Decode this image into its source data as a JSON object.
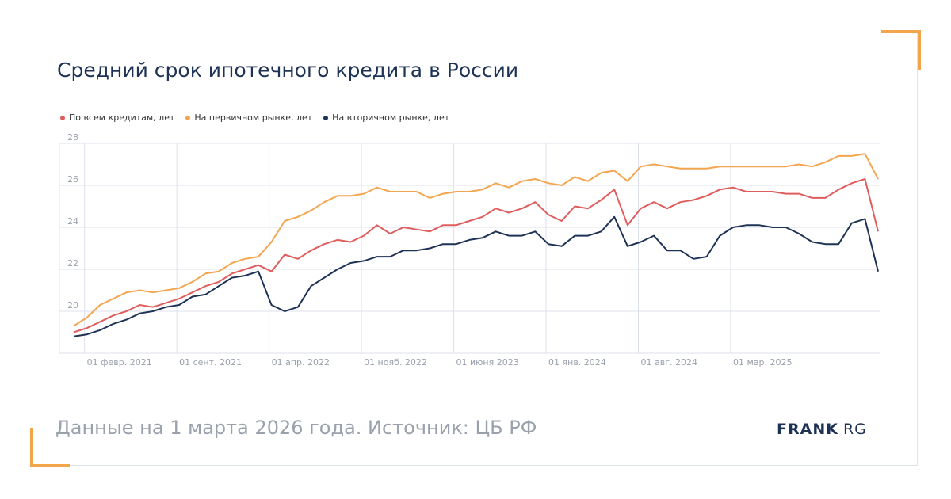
{
  "colors": {
    "accent": "#f2a54a",
    "series_all": "#e05d5d",
    "series_primary": "#f4a54f",
    "series_secondary": "#1e3256",
    "title": "#1e3256",
    "grid": "#dde1ee"
  },
  "header": {
    "title": "Средний срок ипотечного кредита в России"
  },
  "footer": {
    "source": "Данные на 1 марта 2026 года. Источник: ЦБ РФ",
    "logo_bold": "FRANK",
    "logo_light": "RG"
  },
  "chart_data": {
    "type": "line",
    "title": "Средний срок ипотечного кредита в России",
    "xlabel": "",
    "ylabel": "",
    "ylim": [
      18,
      28
    ],
    "yticks": [
      20,
      22,
      24,
      26,
      28
    ],
    "grid": true,
    "legend_position": "top-left",
    "x_start": "2021-01",
    "x_end": "2026-02",
    "x_tick_labels": [
      "01 февр. 2021",
      "01 сент. 2021",
      "01 апр. 2022",
      "01 нояб. 2022",
      "01 июня 2023",
      "01 янв. 2024",
      "01 авг. 2024",
      "01 мар. 2025"
    ],
    "series": [
      {
        "name": "По всем кредитам, лет",
        "values": [
          19.0,
          19.2,
          19.5,
          19.8,
          20.0,
          20.3,
          20.2,
          20.4,
          20.6,
          20.9,
          21.2,
          21.4,
          21.8,
          22.0,
          22.2,
          21.9,
          22.7,
          22.5,
          22.9,
          23.2,
          23.4,
          23.3,
          23.6,
          24.1,
          23.7,
          24.0,
          23.9,
          23.8,
          24.1,
          24.1,
          24.3,
          24.5,
          24.9,
          24.7,
          24.9,
          25.2,
          24.6,
          24.3,
          25.0,
          24.9,
          25.3,
          25.8,
          24.1,
          24.9,
          25.2,
          24.9,
          25.2,
          25.3,
          25.5,
          25.8,
          25.9,
          25.7,
          25.7,
          25.7,
          25.6,
          25.6,
          25.4,
          25.4,
          25.8,
          26.1,
          26.3,
          23.8
        ]
      },
      {
        "name": "На первичном рынке, лет",
        "values": [
          19.3,
          19.7,
          20.3,
          20.6,
          20.9,
          21.0,
          20.9,
          21.0,
          21.1,
          21.4,
          21.8,
          21.9,
          22.3,
          22.5,
          22.6,
          23.3,
          24.3,
          24.5,
          24.8,
          25.2,
          25.5,
          25.5,
          25.6,
          25.9,
          25.7,
          25.7,
          25.7,
          25.4,
          25.6,
          25.7,
          25.7,
          25.8,
          26.1,
          25.9,
          26.2,
          26.3,
          26.1,
          26.0,
          26.4,
          26.2,
          26.6,
          26.7,
          26.2,
          26.9,
          27.0,
          26.9,
          26.8,
          26.8,
          26.8,
          26.9,
          26.9,
          26.9,
          26.9,
          26.9,
          26.9,
          27.0,
          26.9,
          27.1,
          27.4,
          27.4,
          27.5,
          26.3
        ]
      },
      {
        "name": "На вторичном рынке, лет",
        "values": [
          18.8,
          18.9,
          19.1,
          19.4,
          19.6,
          19.9,
          20.0,
          20.2,
          20.3,
          20.7,
          20.8,
          21.2,
          21.6,
          21.7,
          21.9,
          20.3,
          20.0,
          20.2,
          21.2,
          21.6,
          22.0,
          22.3,
          22.4,
          22.6,
          22.6,
          22.9,
          22.9,
          23.0,
          23.2,
          23.2,
          23.4,
          23.5,
          23.8,
          23.6,
          23.6,
          23.8,
          23.2,
          23.1,
          23.6,
          23.6,
          23.8,
          24.5,
          23.1,
          23.3,
          23.6,
          22.9,
          22.9,
          22.5,
          22.6,
          23.6,
          24.0,
          24.1,
          24.1,
          24.0,
          24.0,
          23.7,
          23.3,
          23.2,
          23.2,
          24.2,
          24.4,
          21.9
        ]
      }
    ]
  }
}
